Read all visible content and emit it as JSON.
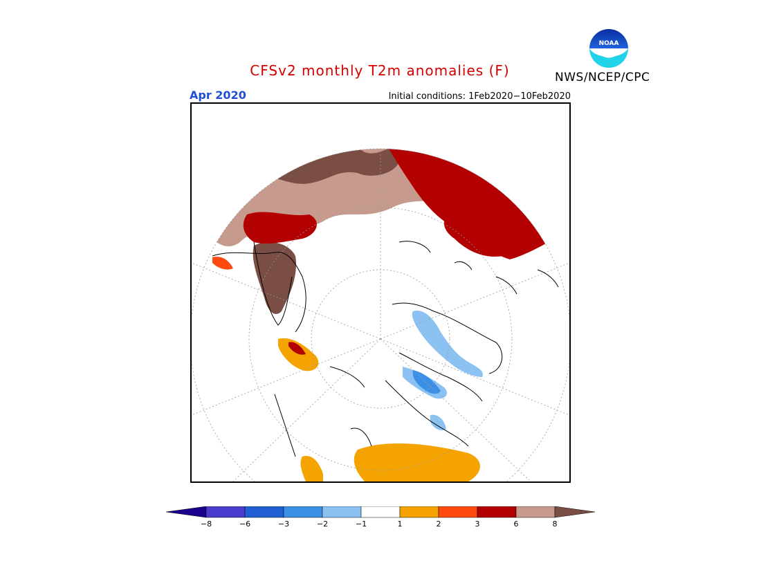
{
  "title": "CFSv2 monthly T2m anomalies (F)",
  "month_label": "Apr 2020",
  "initial_conditions": "Initial conditions: 1Feb2020−10Feb2020",
  "agency": "NWS/NCEP/CPC",
  "logo": {
    "icon": "noaa-logo-icon",
    "text": "NOAA"
  },
  "colorbar": {
    "bins": [
      {
        "color": "#1a008c"
      },
      {
        "color": "#4a3ccc"
      },
      {
        "color": "#1f5fd1"
      },
      {
        "color": "#3c8fe6"
      },
      {
        "color": "#8cc2f2"
      },
      {
        "color": "#ffffff"
      },
      {
        "color": "#f5a300"
      },
      {
        "color": "#ff4a10"
      },
      {
        "color": "#b30000"
      },
      {
        "color": "#c69a8c"
      },
      {
        "color": "#7a4e44"
      }
    ],
    "labels": [
      "−8",
      "−6",
      "−3",
      "−2",
      "−1",
      "1",
      "2",
      "3",
      "6",
      "8"
    ]
  }
}
